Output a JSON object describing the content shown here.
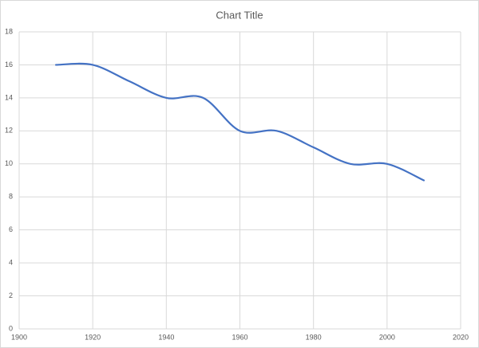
{
  "chart_data": {
    "type": "line",
    "title": "Chart Title",
    "x": [
      1910,
      1920,
      1930,
      1940,
      1950,
      1960,
      1970,
      1980,
      1990,
      2000,
      2010
    ],
    "values": [
      16,
      16,
      15,
      14,
      14,
      12,
      12,
      11,
      10,
      10,
      9
    ],
    "color": "#4472c4",
    "smooth": true,
    "xlim": [
      1900,
      2020
    ],
    "xticks": [
      1900,
      1920,
      1940,
      1960,
      1980,
      2000,
      2020
    ],
    "ylim": [
      0,
      18
    ],
    "yticks": [
      0,
      2,
      4,
      6,
      8,
      10,
      12,
      14,
      16,
      18
    ],
    "grid": true
  }
}
